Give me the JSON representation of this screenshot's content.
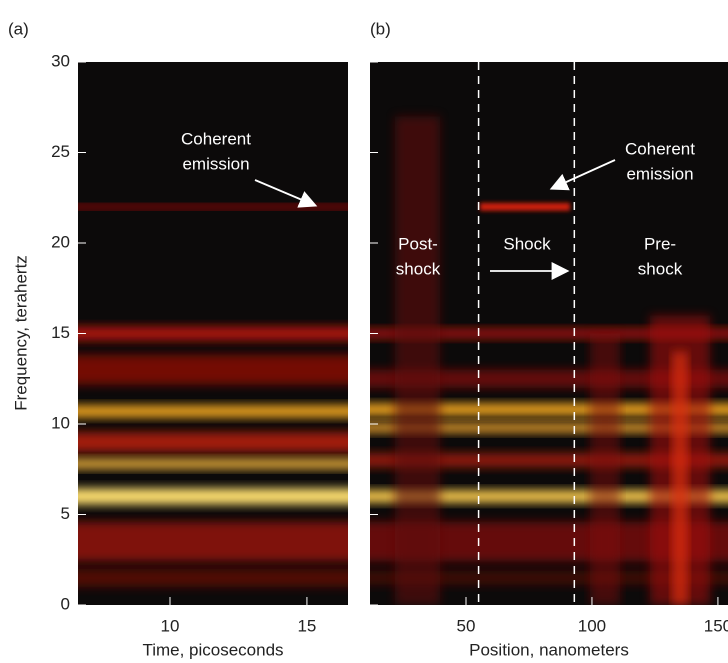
{
  "chart_data": [
    {
      "type": "heatmap",
      "panel_label": "(a)",
      "xlabel": "Time, picoseconds",
      "ylabel": "Frequency, terahertz",
      "xlim": [
        6.64,
        16.5
      ],
      "xticks": [
        10,
        15
      ],
      "ylim": [
        0,
        30
      ],
      "yticks": [
        0,
        5,
        10,
        15,
        20,
        25,
        30
      ],
      "annotations": [
        {
          "lines": [
            "Coherent",
            "emission"
          ]
        }
      ]
    },
    {
      "type": "heatmap",
      "panel_label": "(b)",
      "xlabel": "Position, nanometers",
      "xlim": [
        11.9,
        154
      ],
      "xticks": [
        50,
        100,
        150
      ],
      "ylim": [
        0,
        30
      ],
      "yticks": [
        0,
        5,
        10,
        15,
        20,
        25,
        30
      ],
      "vlines": [
        55,
        93
      ],
      "annotations": [
        {
          "lines": [
            "Coherent",
            "emission"
          ]
        },
        {
          "lines": [
            "Post-",
            "shock"
          ]
        },
        {
          "lines": [
            "Shock"
          ]
        },
        {
          "lines": [
            "Pre-",
            "shock"
          ]
        }
      ]
    }
  ]
}
